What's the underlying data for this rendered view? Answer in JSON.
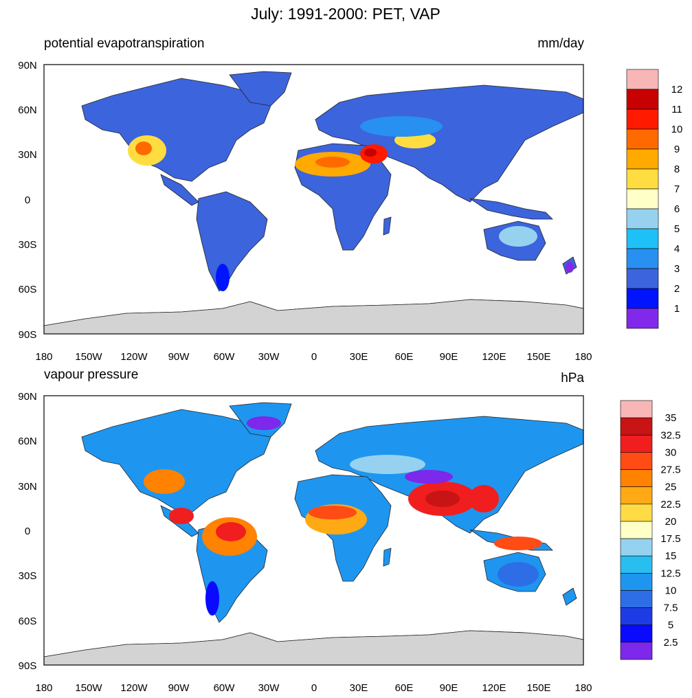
{
  "title": "July: 1991-2000: PET, VAP",
  "panels": [
    {
      "left_label": "potential evapotranspiration",
      "right_label": "mm/day",
      "colorbar": {
        "labels": [
          "12",
          "11",
          "10",
          "9",
          "8",
          "7",
          "6",
          "5",
          "4",
          "3",
          "2",
          "1"
        ],
        "colors": [
          "#f8b6b6",
          "#c80000",
          "#ff1a00",
          "#ff6a00",
          "#ffaa00",
          "#ffdd40",
          "#ffffc8",
          "#96d2f0",
          "#1ec0f8",
          "#2890f0",
          "#3c64dc",
          "#0014ff",
          "#8228eb"
        ]
      }
    },
    {
      "left_label": "vapour pressure",
      "right_label": "hPa",
      "colorbar": {
        "labels": [
          "35",
          "32.5",
          "30",
          "27.5",
          "25",
          "22.5",
          "20",
          "17.5",
          "15",
          "12.5",
          "10",
          "7.5",
          "5",
          "2.5"
        ],
        "colors": [
          "#f8b6b6",
          "#c81414",
          "#f01e1e",
          "#ff4b14",
          "#ff8200",
          "#ffaa14",
          "#ffdc46",
          "#ffffc8",
          "#96d2f0",
          "#28beef",
          "#1e96f0",
          "#2d6ee6",
          "#1e3ce6",
          "#0a0aff",
          "#7d28eb"
        ]
      }
    }
  ],
  "lat_labels": [
    "90N",
    "60N",
    "30N",
    "0",
    "30S",
    "60S",
    "90S"
  ],
  "lon_labels": [
    "180",
    "150W",
    "120W",
    "90W",
    "60W",
    "30W",
    "0",
    "30E",
    "60E",
    "90E",
    "120E",
    "150E",
    "180"
  ],
  "icons": {
    "land": "land-area",
    "antarctica": "antarctica-shape"
  }
}
